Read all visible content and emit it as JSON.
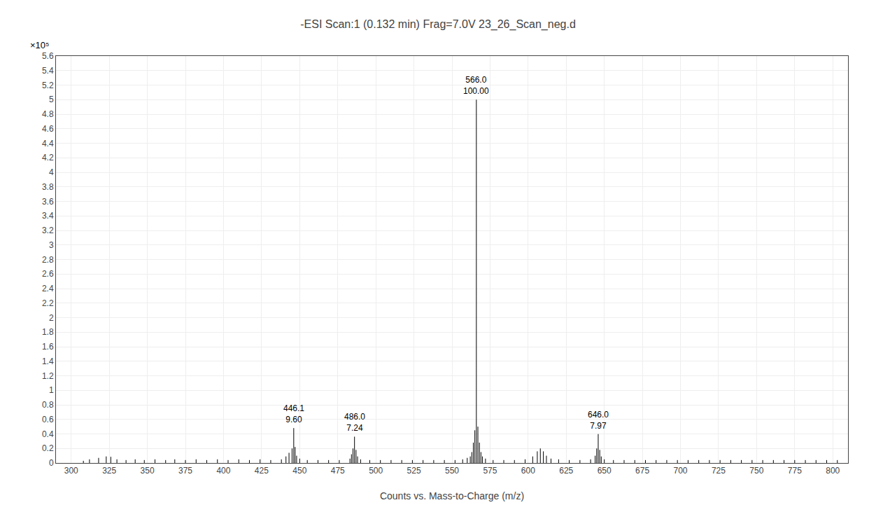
{
  "chart_data": {
    "type": "stem",
    "title": "-ESI Scan:1 (0.132 min) Frag=7.0V 23_26_Scan_neg.d",
    "xlabel": "Counts vs. Mass-to-Charge (m/z)",
    "ylabel": "×10⁵",
    "x": [
      308,
      312,
      318,
      323,
      326,
      330,
      336,
      342,
      348,
      355,
      362,
      368,
      375,
      382,
      389,
      396,
      403,
      410,
      417,
      424,
      431,
      438,
      441,
      443,
      445,
      446.1,
      447,
      448,
      450,
      455,
      462,
      469,
      476,
      483,
      484,
      485,
      486.0,
      487,
      488,
      490,
      496,
      503,
      510,
      517,
      524,
      531,
      538,
      545,
      552,
      557,
      560,
      562,
      563,
      564,
      565,
      566.0,
      567,
      568,
      569,
      570,
      572,
      577,
      584,
      591,
      598,
      603,
      606,
      608,
      610,
      612,
      615,
      620,
      627,
      634,
      641,
      644,
      645,
      646.0,
      647,
      648,
      650,
      656,
      663,
      670,
      677,
      684,
      691,
      698,
      705,
      712,
      719,
      726,
      733,
      740,
      747,
      754,
      761,
      768,
      775,
      782,
      789,
      796,
      803
    ],
    "values": [
      0.03,
      0.05,
      0.07,
      0.09,
      0.085,
      0.05,
      0.04,
      0.05,
      0.04,
      0.05,
      0.04,
      0.05,
      0.04,
      0.05,
      0.04,
      0.05,
      0.04,
      0.05,
      0.04,
      0.05,
      0.04,
      0.05,
      0.09,
      0.14,
      0.2,
      0.48,
      0.22,
      0.1,
      0.06,
      0.04,
      0.04,
      0.04,
      0.04,
      0.06,
      0.12,
      0.2,
      0.362,
      0.18,
      0.09,
      0.05,
      0.04,
      0.04,
      0.04,
      0.04,
      0.04,
      0.04,
      0.04,
      0.04,
      0.04,
      0.05,
      0.07,
      0.09,
      0.15,
      0.28,
      0.45,
      5.0,
      0.5,
      0.28,
      0.15,
      0.09,
      0.06,
      0.04,
      0.04,
      0.04,
      0.05,
      0.09,
      0.16,
      0.2,
      0.16,
      0.1,
      0.06,
      0.05,
      0.04,
      0.04,
      0.05,
      0.1,
      0.2,
      0.398,
      0.18,
      0.09,
      0.05,
      0.04,
      0.04,
      0.04,
      0.04,
      0.04,
      0.04,
      0.04,
      0.04,
      0.04,
      0.04,
      0.04,
      0.04,
      0.04,
      0.04,
      0.04,
      0.04,
      0.04,
      0.04,
      0.04,
      0.04,
      0.04,
      0.04
    ],
    "color": "#000000",
    "xlim": [
      290,
      810
    ],
    "ylim": [
      0,
      5.6
    ],
    "xticks": [
      300,
      325,
      350,
      375,
      400,
      425,
      450,
      475,
      500,
      525,
      550,
      575,
      600,
      625,
      650,
      675,
      700,
      725,
      750,
      775,
      800
    ],
    "yticks": [
      0,
      0.2,
      0.4,
      0.6,
      0.8,
      1,
      1.2,
      1.4,
      1.6,
      1.8,
      2,
      2.2,
      2.4,
      2.6,
      2.8,
      3,
      3.2,
      3.4,
      3.6,
      3.8,
      4,
      4.2,
      4.4,
      4.6,
      4.8,
      5,
      5.2,
      5.4,
      5.6
    ],
    "grid": true,
    "annotations": [
      {
        "x": 566.0,
        "y": 5.0,
        "text": "566.0\n100.00"
      },
      {
        "x": 446.1,
        "y": 0.48,
        "text": "446.1\n9.60"
      },
      {
        "x": 486.0,
        "y": 0.362,
        "text": "486.0\n7.24"
      },
      {
        "x": 646.0,
        "y": 0.398,
        "text": "646.0\n7.97"
      }
    ]
  }
}
